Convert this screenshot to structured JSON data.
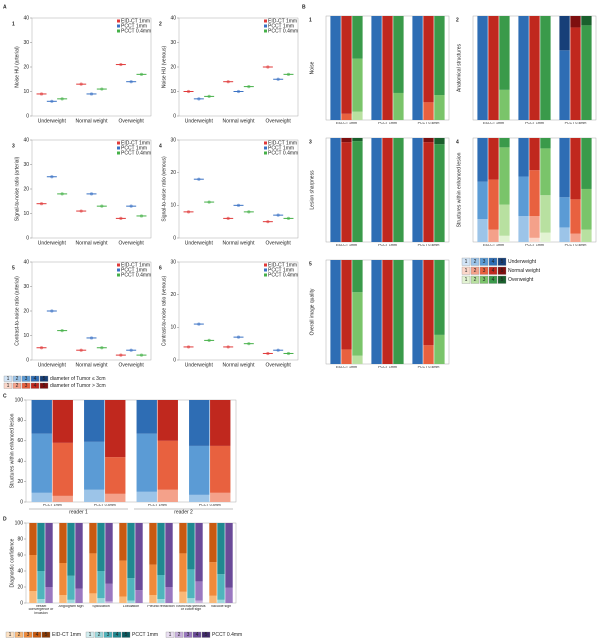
{
  "chart_data": [
    {
      "type": "dot",
      "letter": "A",
      "categories": [
        "Underweight",
        "Normal weight",
        "Overweight"
      ],
      "series": [
        {
          "name": "EID-CT 1mm",
          "color": "#e03a3a"
        },
        {
          "name": "PCCT 1mm",
          "color": "#3a72c4"
        },
        {
          "name": "PCCT 0.4mm",
          "color": "#45b048"
        }
      ],
      "panels": [
        {
          "label": "1",
          "ylabel": "Noise HU (arterial)",
          "ylim": [
            0,
            40
          ],
          "yticks": [
            0,
            10,
            20,
            30,
            40
          ],
          "values": [
            [
              9,
              13,
              21
            ],
            [
              6,
              9,
              14
            ],
            [
              7,
              11,
              17
            ]
          ]
        },
        {
          "label": "2",
          "ylabel": "Noise HU (venous)",
          "ylim": [
            0,
            40
          ],
          "yticks": [
            0,
            10,
            20,
            30,
            40
          ],
          "values": [
            [
              10,
              14,
              20
            ],
            [
              7,
              10,
              15
            ],
            [
              8,
              12,
              17
            ]
          ]
        },
        {
          "label": "3",
          "ylabel": "Signal-to-noise ratio (arterial)",
          "ylim": [
            0,
            40
          ],
          "yticks": [
            0,
            10,
            20,
            30,
            40
          ],
          "values": [
            [
              14,
              11,
              8
            ],
            [
              25,
              18,
              13
            ],
            [
              18,
              13,
              9
            ]
          ]
        },
        {
          "label": "4",
          "ylabel": "Signal-to-noise ratio (venous)",
          "ylim": [
            0,
            30
          ],
          "yticks": [
            0,
            10,
            20,
            30
          ],
          "values": [
            [
              8,
              6,
              5
            ],
            [
              18,
              10,
              7
            ],
            [
              11,
              8,
              6
            ]
          ]
        },
        {
          "label": "5",
          "ylabel": "Contrast-to-noise ratio (arterial)",
          "ylim": [
            0,
            40
          ],
          "yticks": [
            0,
            10,
            20,
            30,
            40
          ],
          "values": [
            [
              5,
              4,
              2
            ],
            [
              20,
              9,
              4
            ],
            [
              12,
              5,
              2
            ]
          ]
        },
        {
          "label": "6",
          "ylabel": "Contrast-to-noise ratio (venous)",
          "ylim": [
            0,
            30
          ],
          "yticks": [
            0,
            10,
            20,
            30
          ],
          "values": [
            [
              4,
              4,
              2
            ],
            [
              11,
              7,
              3
            ],
            [
              6,
              5,
              2
            ]
          ]
        }
      ]
    },
    {
      "type": "stacked",
      "letter": "B",
      "ylim": [
        0,
        100
      ],
      "categories": [
        "EID-CT 1mm",
        "PCCT 1mm",
        "PCCT 0.4mm"
      ],
      "scores": [
        "1",
        "2",
        "3",
        "4",
        "5"
      ],
      "groups": [
        {
          "name": "Underweight",
          "colors": [
            "#d2e4f6",
            "#9cc4e8",
            "#5b9bd5",
            "#2e6db4",
            "#173f78"
          ]
        },
        {
          "name": "Normal weight",
          "colors": [
            "#fbd7ca",
            "#f4a18a",
            "#e8613f",
            "#c0281e",
            "#7e0f0f"
          ]
        },
        {
          "name": "Overweight",
          "colors": [
            "#e2f3d2",
            "#b8e0a0",
            "#7ac46a",
            "#3a9a4a",
            "#195f2c"
          ]
        }
      ],
      "panels": [
        {
          "label": "1",
          "ylabel": "Noise",
          "values": [
            [
              [
                0,
                0,
                0,
                100,
                0
              ],
              [
                0,
                0,
                0,
                100,
                0
              ],
              [
                0,
                0,
                0,
                100,
                0
              ]
            ],
            [
              [
                0,
                0,
                6,
                94,
                0
              ],
              [
                0,
                0,
                0,
                100,
                0
              ],
              [
                0,
                0,
                17,
                83,
                0
              ]
            ],
            [
              [
                0,
                8,
                51,
                41,
                0
              ],
              [
                0,
                0,
                26,
                74,
                0
              ],
              [
                0,
                0,
                24,
                76,
                0
              ]
            ]
          ]
        },
        {
          "label": "2",
          "ylabel": "Anatomical structures",
          "values": [
            [
              [
                0,
                0,
                0,
                100,
                0
              ],
              [
                0,
                0,
                0,
                100,
                0
              ],
              [
                0,
                0,
                0,
                67,
                33
              ]
            ],
            [
              [
                0,
                0,
                0,
                100,
                0
              ],
              [
                0,
                0,
                0,
                100,
                0
              ],
              [
                0,
                0,
                0,
                89,
                11
              ]
            ],
            [
              [
                0,
                0,
                29,
                71,
                0
              ],
              [
                0,
                0,
                0,
                100,
                0
              ],
              [
                0,
                0,
                0,
                91,
                9
              ]
            ]
          ]
        },
        {
          "label": "3",
          "ylabel": "Lesion sharpness",
          "values": [
            [
              [
                0,
                0,
                0,
                100,
                0
              ],
              [
                0,
                0,
                0,
                100,
                0
              ],
              [
                0,
                0,
                0,
                100,
                0
              ]
            ],
            [
              [
                0,
                0,
                0,
                96,
                4
              ],
              [
                0,
                0,
                0,
                100,
                0
              ],
              [
                0,
                0,
                0,
                96,
                4
              ]
            ],
            [
              [
                0,
                0,
                0,
                97,
                3
              ],
              [
                0,
                0,
                0,
                100,
                0
              ],
              [
                0,
                0,
                0,
                94,
                6
              ]
            ]
          ]
        },
        {
          "label": "4",
          "ylabel": "Structures within enhanced lesion",
          "values": [
            [
              [
                0,
                22,
                36,
                42,
                0
              ],
              [
                0,
                25,
                38,
                37,
                0
              ],
              [
                0,
                14,
                29,
                57,
                0
              ]
            ],
            [
              [
                0,
                12,
                48,
                40,
                0
              ],
              [
                4,
                21,
                44,
                31,
                0
              ],
              [
                0,
                8,
                33,
                59,
                0
              ]
            ],
            [
              [
                6,
                30,
                55,
                9,
                0
              ],
              [
                9,
                36,
                45,
                10,
                0
              ],
              [
                0,
                12,
                39,
                49,
                0
              ]
            ]
          ]
        },
        {
          "label": "5",
          "ylabel": "Overall image quality",
          "values": [
            [
              [
                0,
                0,
                0,
                100,
                0
              ],
              [
                0,
                0,
                0,
                100,
                0
              ],
              [
                0,
                0,
                0,
                100,
                0
              ]
            ],
            [
              [
                0,
                0,
                14,
                86,
                0
              ],
              [
                0,
                0,
                0,
                100,
                0
              ],
              [
                0,
                0,
                18,
                82,
                0
              ]
            ],
            [
              [
                0,
                8,
                61,
                31,
                0
              ],
              [
                0,
                0,
                0,
                100,
                0
              ],
              [
                0,
                0,
                28,
                72,
                0
              ]
            ]
          ]
        }
      ]
    },
    {
      "type": "stacked",
      "letter": "C",
      "ylim": [
        0,
        100
      ],
      "yticks": [
        0,
        20,
        40,
        60,
        80,
        100
      ],
      "categories": [
        "PCCT 1mm",
        "PCCT 0.4mm",
        "PCCT 1mm",
        "PCCT 0.4mm"
      ],
      "category_groups": [
        "reader 1",
        "reader 2"
      ],
      "scores": [
        "1",
        "2",
        "3",
        "4",
        "5"
      ],
      "groups": [
        {
          "name": "diameter of Tumor ≤ 3cm",
          "colors": [
            "#d2e4f6",
            "#9cc4e8",
            "#5b9bd5",
            "#2e6db4",
            "#173f78"
          ]
        },
        {
          "name": "diameter of Tumor > 3cm",
          "colors": [
            "#fbd7ca",
            "#f4a18a",
            "#e8613f",
            "#c0281e",
            "#7e0f0f"
          ]
        }
      ],
      "panels": [
        {
          "ylabel": "Structures within enhanced lesion",
          "values": [
            [
              [
                0,
                9,
                58,
                33,
                0
              ],
              [
                0,
                12,
                47,
                41,
                0
              ],
              [
                0,
                10,
                57,
                33,
                0
              ],
              [
                0,
                7,
                48,
                45,
                0
              ]
            ],
            [
              [
                0,
                6,
                52,
                42,
                0
              ],
              [
                0,
                8,
                36,
                56,
                0
              ],
              [
                0,
                12,
                48,
                40,
                0
              ],
              [
                0,
                9,
                46,
                45,
                0
              ]
            ]
          ]
        }
      ]
    },
    {
      "type": "stacked",
      "letter": "D",
      "ylim": [
        0,
        100
      ],
      "yticks": [
        0,
        20,
        40,
        60,
        80,
        100
      ],
      "categories": [
        "Vessel convergence or invasion",
        "Angiogram sign",
        "Spiculation",
        "Lobulation",
        "Pleural retraction",
        "Bronchial stenosis or cutoff sign",
        "Vacuole sign"
      ],
      "scores": [
        "1",
        "2",
        "3",
        "4",
        "5"
      ],
      "groups": [
        {
          "name": "EID-CT 1mm",
          "colors": [
            "#fde2c4",
            "#f9b878",
            "#f08a3a",
            "#c85a10",
            "#8a3a05"
          ]
        },
        {
          "name": "PCCT 1mm",
          "colors": [
            "#d2eef0",
            "#9cd8dc",
            "#4fb4bc",
            "#208890",
            "#0a5a60"
          ]
        },
        {
          "name": "PCCT 0.4mm",
          "colors": [
            "#eadff2",
            "#c8b0dc",
            "#9a78c0",
            "#6a4a98",
            "#402a6a"
          ]
        }
      ],
      "panels": [
        {
          "ylabel": "Diagnostic confidence",
          "values": [
            [
              [
                0,
                15,
                45,
                40,
                0
              ],
              [
                0,
                10,
                40,
                50,
                0
              ],
              [
                0,
                12,
                50,
                38,
                0
              ],
              [
                0,
                8,
                45,
                47,
                0
              ],
              [
                0,
                10,
                38,
                52,
                0
              ],
              [
                0,
                14,
                48,
                38,
                0
              ],
              [
                0,
                9,
                42,
                49,
                0
              ]
            ],
            [
              [
                0,
                5,
                35,
                60,
                0
              ],
              [
                0,
                4,
                30,
                66,
                0
              ],
              [
                0,
                6,
                34,
                60,
                0
              ],
              [
                0,
                3,
                28,
                69,
                0
              ],
              [
                0,
                5,
                30,
                65,
                0
              ],
              [
                0,
                6,
                36,
                58,
                0
              ],
              [
                0,
                4,
                32,
                64,
                0
              ]
            ],
            [
              [
                0,
                0,
                20,
                80,
                0
              ],
              [
                0,
                0,
                18,
                82,
                0
              ],
              [
                0,
                2,
                22,
                76,
                0
              ],
              [
                0,
                0,
                16,
                84,
                0
              ],
              [
                0,
                0,
                20,
                80,
                0
              ],
              [
                0,
                3,
                24,
                73,
                0
              ],
              [
                0,
                0,
                19,
                81,
                0
              ]
            ]
          ]
        }
      ]
    }
  ]
}
